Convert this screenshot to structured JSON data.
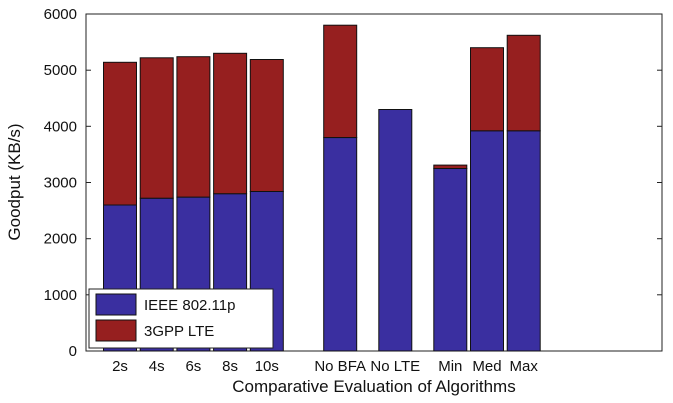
{
  "chart_data": {
    "type": "bar",
    "stacked": true,
    "categories": [
      "2s",
      "4s",
      "6s",
      "8s",
      "10s",
      "No BFA",
      "No LTE",
      "Min",
      "Med",
      "Max"
    ],
    "series": [
      {
        "name": "IEEE 802.11p",
        "color": "#3a2fa0",
        "values": [
          2600,
          2720,
          2740,
          2800,
          2840,
          3800,
          4300,
          3250,
          3920,
          3920
        ]
      },
      {
        "name": "3GPP LTE",
        "color": "#961f1f",
        "values": [
          2540,
          2500,
          2500,
          2500,
          2350,
          2000,
          0,
          60,
          1480,
          1700
        ]
      }
    ],
    "xlabel": "Comparative Evaluation of Algorithms",
    "ylabel": "Goodput (KB/s)",
    "ylim": [
      0,
      6000
    ],
    "yticks": [
      0,
      1000,
      2000,
      3000,
      4000,
      5000,
      6000
    ],
    "grid": false,
    "legend": "bottom-left"
  }
}
